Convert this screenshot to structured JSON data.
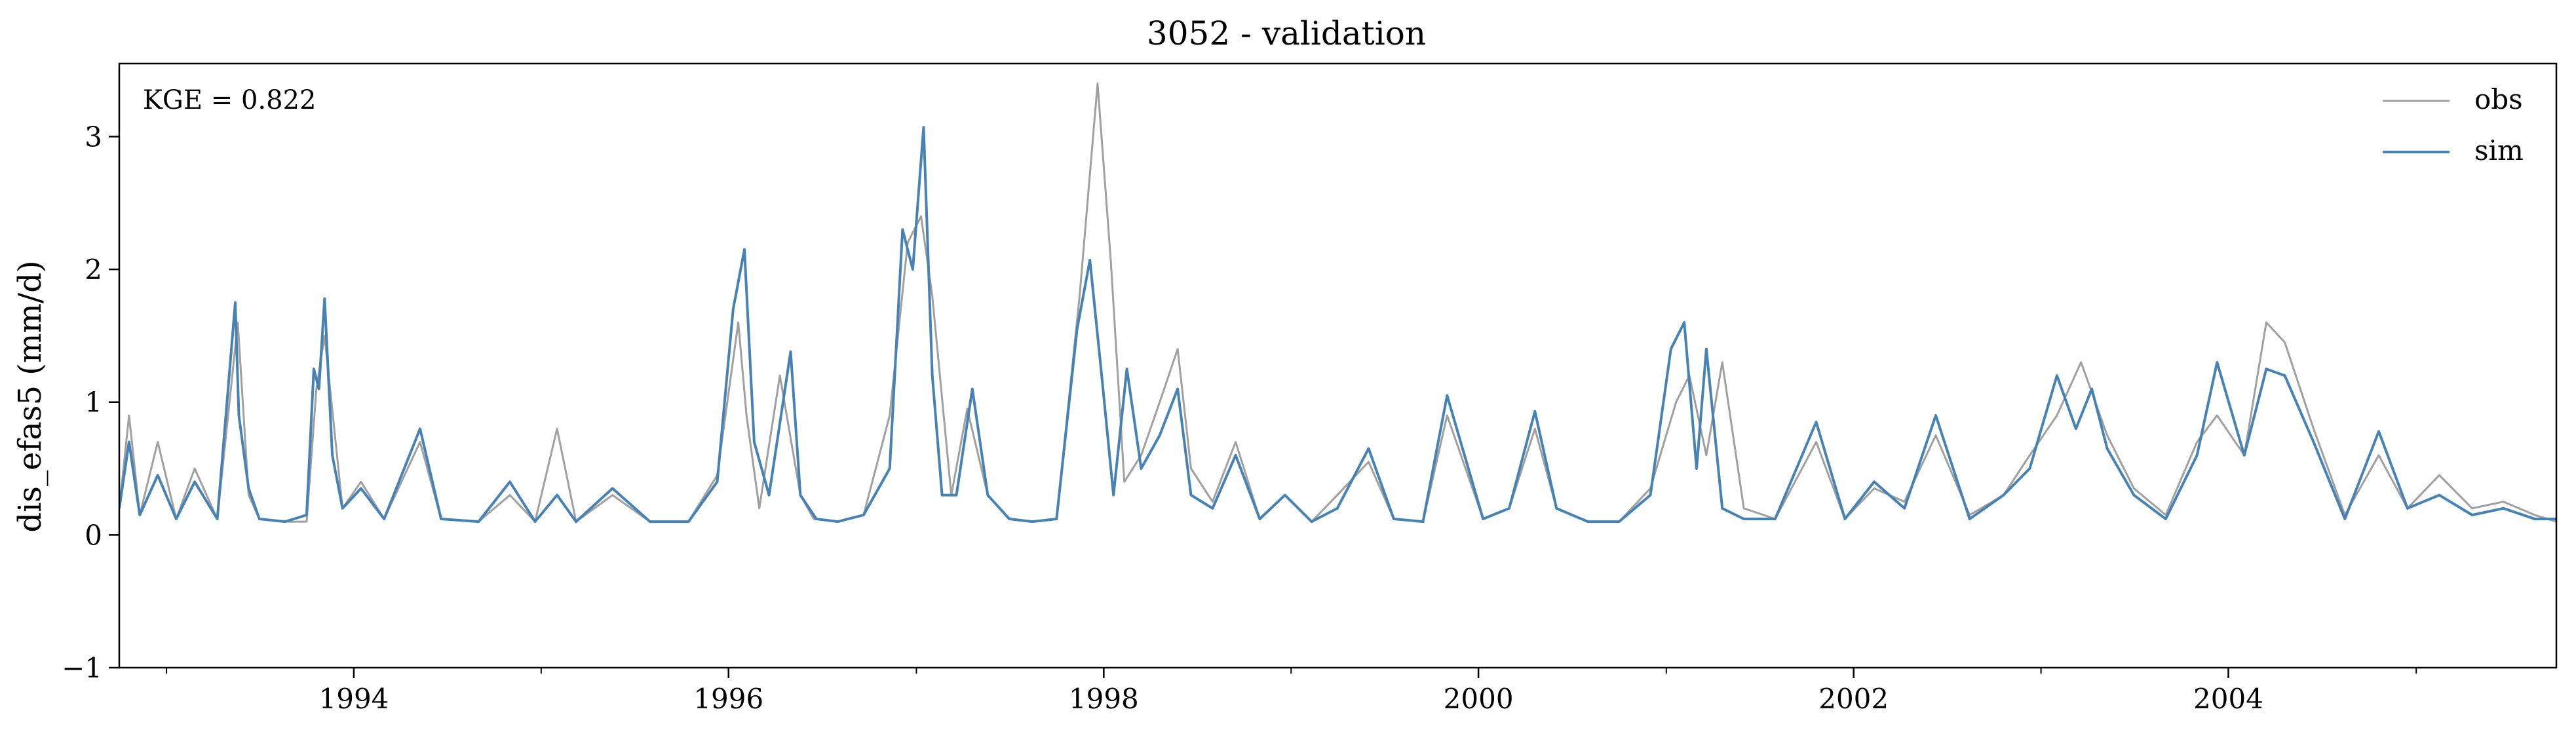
{
  "chart_data": {
    "type": "line",
    "title": "3052 - validation",
    "xlabel": "",
    "ylabel": "dis_efas5 (mm/d)",
    "annotation": "KGE = 0.822",
    "xlim": [
      "1992-10-01",
      "2005-10-01"
    ],
    "ylim": [
      -1,
      3.55
    ],
    "x_ticks": [
      "1994",
      "1996",
      "1998",
      "2000",
      "2002",
      "2004"
    ],
    "y_ticks": [
      "−1",
      "0",
      "1",
      "2",
      "3"
    ],
    "legend": {
      "position": "top-right",
      "entries": [
        "obs",
        "sim"
      ]
    },
    "grid": false,
    "series": [
      {
        "name": "obs",
        "color": "#a0a0a0",
        "x": [
          "1992-10-01",
          "1992-10-20",
          "1992-11-10",
          "1992-12-15",
          "1993-01-20",
          "1993-02-25",
          "1993-04-10",
          "1993-05-20",
          "1993-06-10",
          "1993-07-01",
          "1993-08-20",
          "1993-10-01",
          "1993-10-20",
          "1993-11-05",
          "1993-12-10",
          "1994-01-15",
          "1994-03-01",
          "1994-05-10",
          "1994-06-20",
          "1994-09-01",
          "1994-11-01",
          "1994-12-20",
          "1995-02-01",
          "1995-03-10",
          "1995-05-20",
          "1995-08-01",
          "1995-10-15",
          "1995-12-10",
          "1996-01-20",
          "1996-02-05",
          "1996-03-01",
          "1996-04-10",
          "1996-05-20",
          "1996-06-15",
          "1996-08-01",
          "1996-09-20",
          "1996-11-10",
          "1996-12-15",
          "1997-01-10",
          "1997-02-01",
          "1997-03-10",
          "1997-04-10",
          "1997-05-20",
          "1997-07-01",
          "1997-08-15",
          "1997-10-01",
          "1997-11-15",
          "1997-12-20",
          "1998-01-15",
          "1998-02-10",
          "1998-03-15",
          "1998-04-20",
          "1998-05-25",
          "1998-06-20",
          "1998-08-01",
          "1998-09-15",
          "1998-11-01",
          "1998-12-20",
          "1999-02-10",
          "1999-04-01",
          "1999-06-01",
          "1999-07-20",
          "1999-09-15",
          "1999-11-01",
          "2000-01-10",
          "2000-03-01",
          "2000-04-20",
          "2000-06-01",
          "2000-08-01",
          "2000-10-01",
          "2000-12-01",
          "2001-01-20",
          "2001-02-15",
          "2001-03-20",
          "2001-04-20",
          "2001-06-01",
          "2001-08-01",
          "2001-10-20",
          "2001-12-15",
          "2002-02-10",
          "2002-04-10",
          "2002-06-10",
          "2002-08-15",
          "2002-10-20",
          "2002-12-10",
          "2003-02-01",
          "2003-03-20",
          "2003-05-10",
          "2003-07-01",
          "2003-09-01",
          "2003-11-01",
          "2003-12-10",
          "2004-02-01",
          "2004-03-15",
          "2004-04-20",
          "2004-06-15",
          "2004-08-15",
          "2004-10-20",
          "2004-12-15",
          "2005-02-15",
          "2005-04-20",
          "2005-06-20",
          "2005-08-20",
          "2005-10-01"
        ],
        "y": [
          0.2,
          0.9,
          0.15,
          0.7,
          0.12,
          0.5,
          0.12,
          1.6,
          0.3,
          0.12,
          0.1,
          0.1,
          1.1,
          1.5,
          0.2,
          0.4,
          0.12,
          0.7,
          0.12,
          0.1,
          0.3,
          0.1,
          0.8,
          0.1,
          0.3,
          0.1,
          0.1,
          0.45,
          1.6,
          0.9,
          0.2,
          1.2,
          0.3,
          0.12,
          0.1,
          0.15,
          0.9,
          2.2,
          2.4,
          1.8,
          0.3,
          0.95,
          0.3,
          0.12,
          0.1,
          0.12,
          1.8,
          3.4,
          2.05,
          0.4,
          0.6,
          1.0,
          1.4,
          0.5,
          0.25,
          0.7,
          0.12,
          0.3,
          0.1,
          0.3,
          0.55,
          0.12,
          0.1,
          0.9,
          0.12,
          0.2,
          0.8,
          0.2,
          0.1,
          0.1,
          0.35,
          1.0,
          1.2,
          0.6,
          1.3,
          0.2,
          0.12,
          0.7,
          0.12,
          0.35,
          0.25,
          0.75,
          0.15,
          0.3,
          0.6,
          0.9,
          1.3,
          0.75,
          0.35,
          0.15,
          0.7,
          0.9,
          0.6,
          1.6,
          1.45,
          0.8,
          0.15,
          0.6,
          0.2,
          0.45,
          0.2,
          0.25,
          0.15,
          0.1
        ]
      },
      {
        "name": "sim",
        "color": "#4682b4",
        "x": [
          "1992-10-01",
          "1992-10-20",
          "1992-11-10",
          "1992-12-15",
          "1993-01-20",
          "1993-02-25",
          "1993-04-10",
          "1993-05-15",
          "1993-05-22",
          "1993-06-10",
          "1993-07-01",
          "1993-08-20",
          "1993-10-01",
          "1993-10-15",
          "1993-10-25",
          "1993-11-05",
          "1993-11-20",
          "1993-12-10",
          "1994-01-15",
          "1994-03-01",
          "1994-05-10",
          "1994-06-20",
          "1994-09-01",
          "1994-11-01",
          "1994-12-20",
          "1995-02-01",
          "1995-03-10",
          "1995-05-20",
          "1995-08-01",
          "1995-10-15",
          "1995-12-10",
          "1996-01-10",
          "1996-02-01",
          "1996-02-20",
          "1996-03-20",
          "1996-05-01",
          "1996-05-20",
          "1996-06-20",
          "1996-08-01",
          "1996-09-20",
          "1996-11-10",
          "1996-12-05",
          "1996-12-25",
          "1997-01-15",
          "1997-02-01",
          "1997-02-20",
          "1997-03-20",
          "1997-04-20",
          "1997-05-20",
          "1997-07-01",
          "1997-08-15",
          "1997-10-01",
          "1997-11-10",
          "1997-12-05",
          "1997-12-28",
          "1998-01-20",
          "1998-02-15",
          "1998-03-15",
          "1998-04-20",
          "1998-05-25",
          "1998-06-20",
          "1998-08-01",
          "1998-09-15",
          "1998-11-01",
          "1998-12-20",
          "1999-02-10",
          "1999-04-01",
          "1999-06-01",
          "1999-07-20",
          "1999-09-15",
          "1999-11-01",
          "2000-01-10",
          "2000-03-01",
          "2000-04-20",
          "2000-06-01",
          "2000-08-01",
          "2000-10-01",
          "2000-12-01",
          "2001-01-10",
          "2001-02-05",
          "2001-03-01",
          "2001-03-20",
          "2001-04-20",
          "2001-06-01",
          "2001-08-01",
          "2001-10-20",
          "2001-12-15",
          "2002-02-10",
          "2002-04-10",
          "2002-06-10",
          "2002-08-15",
          "2002-10-20",
          "2002-12-10",
          "2003-02-01",
          "2003-03-10",
          "2003-04-10",
          "2003-05-10",
          "2003-07-01",
          "2003-09-01",
          "2003-11-01",
          "2003-12-10",
          "2004-02-01",
          "2004-03-15",
          "2004-04-20",
          "2004-06-15",
          "2004-08-15",
          "2004-10-20",
          "2004-12-15",
          "2005-02-15",
          "2005-04-20",
          "2005-06-20",
          "2005-08-20",
          "2005-10-01"
        ],
        "y": [
          0.2,
          0.7,
          0.15,
          0.45,
          0.12,
          0.4,
          0.12,
          1.75,
          0.9,
          0.35,
          0.12,
          0.1,
          0.15,
          1.25,
          1.1,
          1.78,
          0.6,
          0.2,
          0.35,
          0.12,
          0.8,
          0.12,
          0.1,
          0.4,
          0.1,
          0.3,
          0.1,
          0.35,
          0.1,
          0.1,
          0.4,
          1.7,
          2.15,
          0.7,
          0.3,
          1.38,
          0.3,
          0.12,
          0.1,
          0.15,
          0.5,
          2.3,
          2.0,
          3.07,
          1.2,
          0.3,
          0.3,
          1.1,
          0.3,
          0.12,
          0.1,
          0.12,
          1.55,
          2.07,
          1.2,
          0.3,
          1.25,
          0.5,
          0.75,
          1.1,
          0.3,
          0.2,
          0.6,
          0.12,
          0.3,
          0.1,
          0.2,
          0.65,
          0.12,
          0.1,
          1.05,
          0.12,
          0.2,
          0.93,
          0.2,
          0.1,
          0.1,
          0.3,
          1.4,
          1.6,
          0.5,
          1.4,
          0.2,
          0.12,
          0.12,
          0.85,
          0.12,
          0.4,
          0.2,
          0.9,
          0.12,
          0.3,
          0.5,
          1.2,
          0.8,
          1.1,
          0.65,
          0.3,
          0.12,
          0.6,
          1.3,
          0.6,
          1.25,
          1.2,
          0.7,
          0.12,
          0.78,
          0.2,
          0.3,
          0.15,
          0.2,
          0.12,
          0.12
        ]
      }
    ]
  }
}
